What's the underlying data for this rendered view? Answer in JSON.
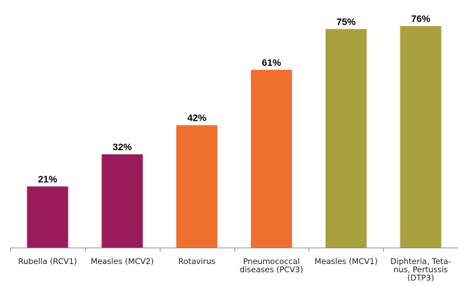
{
  "chart_data": {
    "type": "bar",
    "title": "",
    "xlabel": "",
    "ylabel": "",
    "ylim": [
      0,
      80
    ],
    "grid": false,
    "categories": [
      "Rubella (RCV1)",
      "Measles (MCV2)",
      "Rotavirus",
      "Pneumococcal diseases (PCV3)",
      "Measles (MCV1)",
      "Diphteria, Tetanus, Pertussis (DTP3)"
    ],
    "category_label_lines": [
      [
        "Rubella (RCV1)"
      ],
      [
        "Measles (MCV2)"
      ],
      [
        "Rotavirus"
      ],
      [
        "Pneumococcal",
        "diseases (PCV3)"
      ],
      [
        "Measles (MCV1)"
      ],
      [
        "Diphteria, Teta-",
        "nus, Pertussis",
        "(DTP3)"
      ]
    ],
    "values": [
      21,
      32,
      42,
      61,
      75,
      76
    ],
    "data_labels": [
      "21%",
      "32%",
      "42%",
      "61%",
      "75%",
      "76%"
    ],
    "colors": [
      "#9b1b5a",
      "#9b1b5a",
      "#f07030",
      "#f07030",
      "#a8a13e",
      "#a8a13e"
    ]
  }
}
